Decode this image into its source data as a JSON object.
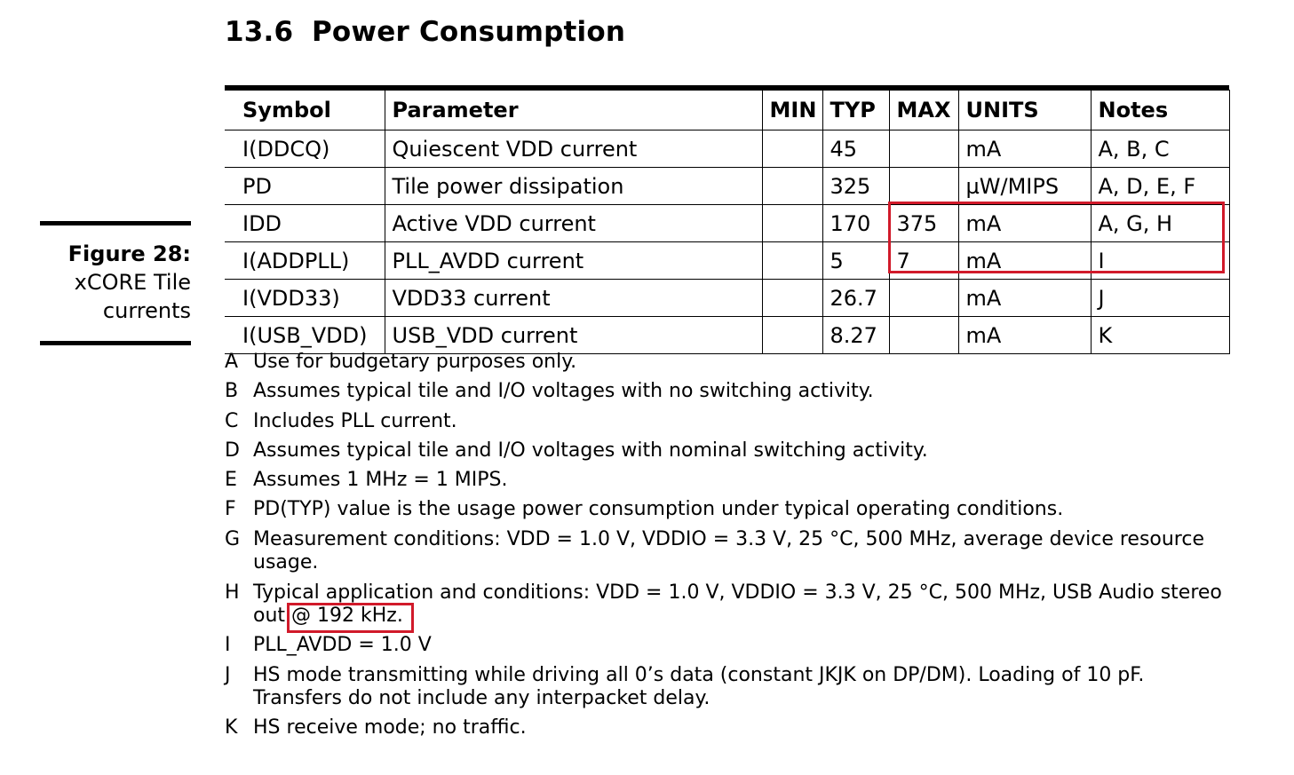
{
  "section": {
    "number": "13.6",
    "title": "Power Consumption"
  },
  "figure": {
    "label": "Figure 28:",
    "caption": "xCORE Tile currents"
  },
  "table": {
    "headers": [
      "Symbol",
      "Parameter",
      "MIN",
      "TYP",
      "MAX",
      "UNITS",
      "Notes"
    ],
    "rows": [
      [
        "I(DDCQ)",
        "Quiescent VDD current",
        "",
        "45",
        "",
        "mA",
        "A, B, C"
      ],
      [
        "PD",
        "Tile power dissipation",
        "",
        "325",
        "",
        "µW/MIPS",
        "A, D, E, F"
      ],
      [
        "IDD",
        "Active VDD current",
        "",
        "170",
        "375",
        "mA",
        "A, G, H"
      ],
      [
        "I(ADDPLL)",
        "PLL_AVDD current",
        "",
        "5",
        "7",
        "mA",
        "I"
      ],
      [
        "I(VDD33)",
        "VDD33 current",
        "",
        "26.7",
        "",
        "mA",
        "J"
      ],
      [
        "I(USB_VDD)",
        "USB_VDD current",
        "",
        "8.27",
        "",
        "mA",
        "K"
      ]
    ]
  },
  "notes": [
    {
      "letter": "A",
      "text": "Use for budgetary purposes only."
    },
    {
      "letter": "B",
      "text": "Assumes typical tile and I/O voltages with no switching activity."
    },
    {
      "letter": "C",
      "text": "Includes PLL current."
    },
    {
      "letter": "D",
      "text": "Assumes typical tile and I/O voltages with nominal switching activity."
    },
    {
      "letter": "E",
      "text": "Assumes 1 MHz = 1 MIPS."
    },
    {
      "letter": "F",
      "text": "PD(TYP) value is the usage power consumption under typical operating conditions."
    },
    {
      "letter": "G",
      "text": "Measurement conditions: VDD = 1.0 V, VDDIO = 3.3 V, 25 °C, 500 MHz, average device resource usage."
    },
    {
      "letter": "H",
      "text": "Typical application and conditions: VDD = 1.0 V, VDDIO = 3.3 V, 25 °C, 500 MHz, USB Audio stereo out @ 192 kHz."
    },
    {
      "letter": "I",
      "text": "PLL_AVDD = 1.0 V"
    },
    {
      "letter": "J",
      "text": "HS mode transmitting while driving all 0’s data (constant JKJK on DP/DM). Loading of 10 pF. Transfers do not include any interpacket delay."
    },
    {
      "letter": "K",
      "text": "HS receive mode; no traffic."
    }
  ],
  "annotation_color": "#d11a2a"
}
